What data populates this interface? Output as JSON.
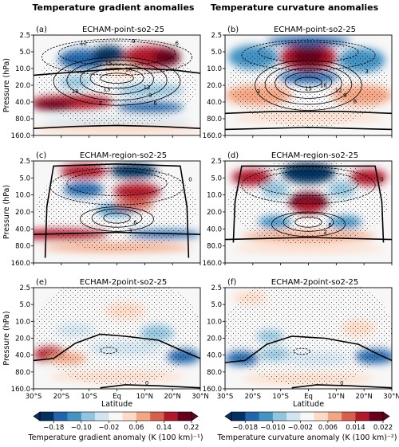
{
  "column_titles": [
    "Temperature gradient anomalies",
    "Temperature curvature anomalies"
  ],
  "colors": {
    "diverging": [
      "#053061",
      "#2166ac",
      "#4393c3",
      "#92c5de",
      "#d1e5f0",
      "#f7f7f7",
      "#fddbc7",
      "#f4a582",
      "#d6604d",
      "#b2182b",
      "#67001f"
    ],
    "contour": "#000000",
    "stipple": "#000000"
  },
  "chart_data": [
    {
      "type": "heatmap",
      "panel_label": "(a)",
      "title": "ECHAM-point-so2-25",
      "xlabel": "",
      "ylabel": "Pressure (hPa)",
      "x_ticks": [
        "30°S",
        "20°S",
        "10°S",
        "Eq",
        "10°N",
        "20°N",
        "30°N"
      ],
      "y_ticks": [
        "2.5",
        "5.0",
        "10.0",
        "20.0",
        "40.0",
        "80.0",
        "160.0"
      ],
      "ylim_hPa": [
        160,
        2.5
      ],
      "xlim_deg": [
        -30,
        30
      ],
      "y_scale": "log",
      "contour_labels": [
        "6",
        "9",
        "12",
        "15",
        "18",
        "3",
        "6",
        "9",
        "12",
        "15",
        "18"
      ]
    },
    {
      "type": "heatmap",
      "panel_label": "(b)",
      "title": "ECHAM-point-so2-25",
      "xlabel": "",
      "ylabel": "",
      "x_ticks": [
        "30°S",
        "20°S",
        "10°S",
        "Eq",
        "10°N",
        "20°N",
        "30°N"
      ],
      "y_ticks": [
        "2.5",
        "5.0",
        "10.0",
        "20.0",
        "40.0",
        "80.0",
        "160.0"
      ],
      "ylim_hPa": [
        160,
        2.5
      ],
      "xlim_deg": [
        -30,
        30
      ],
      "y_scale": "log",
      "contour_labels": [
        "15",
        "18",
        "12",
        "9",
        "6",
        "3",
        "3"
      ]
    },
    {
      "type": "heatmap",
      "panel_label": "(c)",
      "title": "ECHAM-region-so2-25",
      "xlabel": "",
      "ylabel": "Pressure (hPa)",
      "x_ticks": [
        "30°S",
        "20°S",
        "10°S",
        "Eq",
        "10°N",
        "20°N",
        "30°N"
      ],
      "y_ticks": [
        "2.5",
        "5.0",
        "10.0",
        "20.0",
        "40.0",
        "80.0",
        "160.0"
      ],
      "ylim_hPa": [
        160,
        2.5
      ],
      "xlim_deg": [
        -30,
        30
      ],
      "y_scale": "log",
      "contour_labels": [
        "6",
        "3",
        "0"
      ]
    },
    {
      "type": "heatmap",
      "panel_label": "(d)",
      "title": "ECHAM-region-so2-25",
      "xlabel": "",
      "ylabel": "",
      "x_ticks": [
        "30°S",
        "20°S",
        "10°S",
        "Eq",
        "10°N",
        "20°N",
        "30°N"
      ],
      "y_ticks": [
        "2.5",
        "5.0",
        "10.0",
        "20.0",
        "40.0",
        "80.0",
        "160.0"
      ],
      "ylim_hPa": [
        160,
        2.5
      ],
      "xlim_deg": [
        -30,
        30
      ],
      "y_scale": "log",
      "contour_labels": [
        "6",
        "3",
        "0"
      ]
    },
    {
      "type": "heatmap",
      "panel_label": "(e)",
      "title": "ECHAM-2point-so2-25",
      "xlabel": "Latitude",
      "ylabel": "Pressure (hPa)",
      "x_ticks": [
        "30°S",
        "20°S",
        "10°S",
        "Eq",
        "10°N",
        "20°N",
        "30°N"
      ],
      "y_ticks": [
        "2.5",
        "5.0",
        "10.0",
        "20.0",
        "40.0",
        "80.0",
        "160.0"
      ],
      "ylim_hPa": [
        160,
        2.5
      ],
      "xlim_deg": [
        -30,
        30
      ],
      "y_scale": "log",
      "contour_labels": [
        "0"
      ]
    },
    {
      "type": "heatmap",
      "panel_label": "(f)",
      "title": "ECHAM-2point-so2-25",
      "xlabel": "Latitude",
      "ylabel": "",
      "x_ticks": [
        "30°S",
        "20°S",
        "10°S",
        "Eq",
        "10°N",
        "20°N",
        "30°N"
      ],
      "y_ticks": [
        "2.5",
        "5.0",
        "10.0",
        "20.0",
        "40.0",
        "80.0",
        "160.0"
      ],
      "ylim_hPa": [
        160,
        2.5
      ],
      "xlim_deg": [
        -30,
        30
      ],
      "y_scale": "log",
      "contour_labels": [
        "0"
      ]
    }
  ],
  "colorbars": [
    {
      "label": "Temperature gradient anomaly (K (100 km)⁻¹)",
      "ticks": [
        "−0.18",
        "−0.10",
        "−0.02",
        "0.06",
        "0.14",
        "0.22"
      ],
      "range": [
        -0.22,
        0.22
      ]
    },
    {
      "label": "Temperature curvature anomaly (K (100 km)⁻²)",
      "ticks": [
        "−0.018",
        "−0.010",
        "−0.002",
        "0.006",
        "0.014",
        "0.022"
      ],
      "range": [
        -0.022,
        0.022
      ]
    }
  ]
}
